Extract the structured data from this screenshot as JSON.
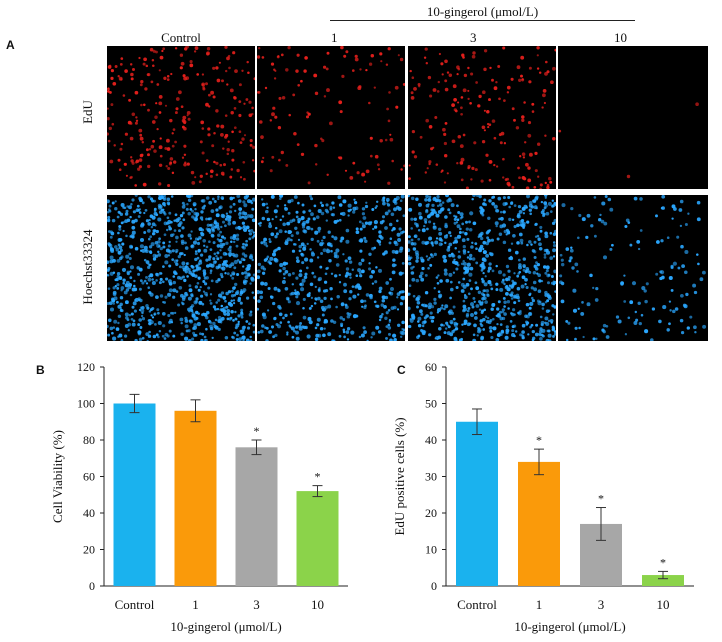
{
  "panelA": {
    "letter": "A",
    "group_label": "10-gingerol (μmol/L)",
    "columns": [
      "Control",
      "1",
      "3",
      "10"
    ],
    "rows": [
      "EdU",
      "Hoechst33324"
    ],
    "edu_color": "#e8201c",
    "hoechst_color": "#2aa7ff",
    "edu_density": [
      260,
      110,
      190,
      3
    ],
    "hoechst_density": [
      900,
      560,
      780,
      150
    ]
  },
  "panelB": {
    "letter": "B",
    "chart_data": {
      "type": "bar",
      "categories": [
        "Control",
        "1",
        "3",
        "10"
      ],
      "values": [
        100,
        96,
        76,
        52
      ],
      "errors": [
        5,
        6,
        4,
        3
      ],
      "significance": [
        "",
        "",
        "*",
        "*"
      ],
      "colors": [
        "#1ab2ee",
        "#fa9a0a",
        "#a7a7a7",
        "#8bd34a"
      ],
      "xlabel": "10-gingerol (μmol/L)",
      "ylabel": "Cell Viability (%)",
      "ylim": [
        0,
        120
      ],
      "yticks": [
        0,
        20,
        40,
        60,
        80,
        100,
        120
      ]
    }
  },
  "panelC": {
    "letter": "C",
    "chart_data": {
      "type": "bar",
      "categories": [
        "Control",
        "1",
        "3",
        "10"
      ],
      "values": [
        45,
        34,
        17,
        3
      ],
      "errors": [
        3.5,
        3.5,
        4.5,
        1
      ],
      "significance": [
        "",
        "*",
        "*",
        "*"
      ],
      "colors": [
        "#1ab2ee",
        "#fa9a0a",
        "#a7a7a7",
        "#8bd34a"
      ],
      "xlabel": "10-gingerol (μmol/L)",
      "ylabel": "EdU positive cells (%)",
      "ylim": [
        0,
        60
      ],
      "yticks": [
        0,
        10,
        20,
        30,
        40,
        50,
        60
      ]
    }
  }
}
